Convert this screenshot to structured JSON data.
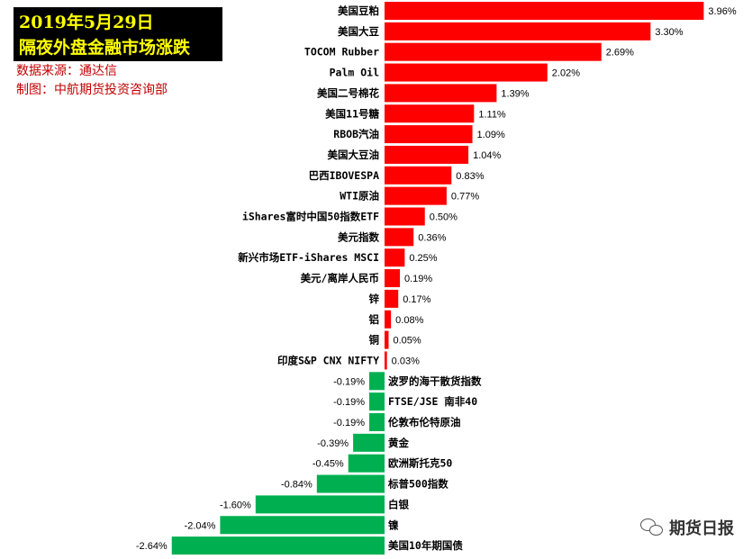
{
  "header": {
    "title_line1": "2019年5月29日",
    "title_line2": "隔夜外盘金融市场涨跌",
    "source": "数据来源：通达信",
    "maker": "制图：中航期货投资咨询部"
  },
  "watermark": {
    "text": "期货日报",
    "icon": "wechat-icon"
  },
  "colors": {
    "positive": "#ff0000",
    "negative": "#00b050"
  },
  "chart_data": {
    "type": "bar",
    "orientation": "horizontal",
    "categories": [
      "美国豆粕",
      "美国大豆",
      "TOCOM Rubber",
      "Palm Oil",
      "美国二号棉花",
      "美国11号糖",
      "RBOB汽油",
      "美国大豆油",
      "巴西IBOVESPA",
      "WTI原油",
      "iShares富时中国50指数ETF",
      "美元指数",
      "新兴市场ETF-iShares MSCI",
      "美元/离岸人民币",
      "锌",
      "铝",
      "铜",
      "印度S&P CNX NIFTY",
      "波罗的海干散货指数",
      "FTSE/JSE 南非40",
      "伦敦布伦特原油",
      "黄金",
      "欧洲斯托克50",
      "标普500指数",
      "白银",
      "镍",
      "美国10年期国债"
    ],
    "values": [
      3.96,
      3.3,
      2.69,
      2.02,
      1.39,
      1.11,
      1.09,
      1.04,
      0.83,
      0.77,
      0.5,
      0.36,
      0.25,
      0.19,
      0.17,
      0.08,
      0.05,
      0.03,
      -0.19,
      -0.19,
      -0.19,
      -0.39,
      -0.45,
      -0.84,
      -1.6,
      -2.04,
      -2.64
    ],
    "labels": [
      "3.96%",
      "3.30%",
      "2.69%",
      "2.02%",
      "1.39%",
      "1.11%",
      "1.09%",
      "1.04%",
      "0.83%",
      "0.77%",
      "0.50%",
      "0.36%",
      "0.25%",
      "0.19%",
      "0.17%",
      "0.08%",
      "0.05%",
      "0.03%",
      "-0.19%",
      "-0.19%",
      "-0.19%",
      "-0.39%",
      "-0.45%",
      "-0.84%",
      "-1.60%",
      "-2.04%",
      "-2.64%"
    ],
    "unit": "%",
    "grid": false,
    "legend": "none"
  }
}
